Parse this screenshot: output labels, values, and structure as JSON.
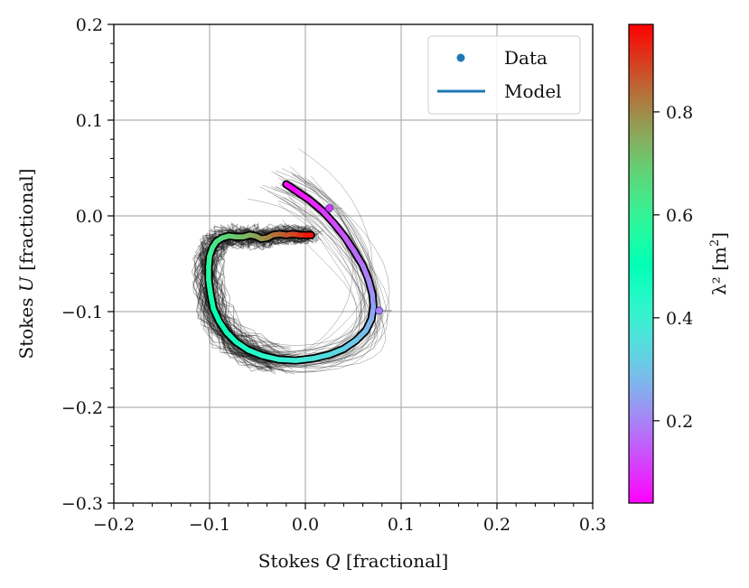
{
  "chart_data": {
    "type": "line",
    "title": "",
    "xlabel": "Stokes Q [fractional]",
    "xlabel_prefix": "Stokes ",
    "xlabel_symbol": "Q",
    "xlabel_suffix": " [fractional]",
    "ylabel": "Stokes U [fractional]",
    "ylabel_prefix": "Stokes ",
    "ylabel_symbol": "U",
    "ylabel_suffix": " [fractional]",
    "xlim": [
      -0.2,
      0.3
    ],
    "ylim": [
      -0.3,
      0.2
    ],
    "xticks": [
      -0.2,
      -0.1,
      0.0,
      0.1,
      0.2,
      0.3
    ],
    "xtick_labels": [
      "−0.2",
      "−0.1",
      "0.0",
      "0.1",
      "0.2",
      "0.3"
    ],
    "yticks": [
      -0.3,
      -0.2,
      -0.1,
      0.0,
      0.1,
      0.2
    ],
    "ytick_labels": [
      "−0.3",
      "−0.2",
      "−0.1",
      "0.0",
      "0.1",
      "0.2"
    ],
    "grid": true,
    "legend": {
      "placement": "top-right",
      "entries": [
        {
          "label": "Data",
          "marker": "point",
          "color": "#1f77b4"
        },
        {
          "label": "Model",
          "marker": "line",
          "color": "#1f77b4"
        }
      ]
    },
    "model_curve": {
      "name": "Model",
      "q": [
        -0.02,
        -0.008,
        0.005,
        0.018,
        0.03,
        0.041,
        0.051,
        0.06,
        0.066,
        0.07,
        0.071,
        0.069,
        0.063,
        0.053,
        0.04,
        0.025,
        0.008,
        -0.01,
        -0.028,
        -0.045,
        -0.06,
        -0.072,
        -0.082,
        -0.09,
        -0.096,
        -0.099,
        -0.101,
        -0.101,
        -0.1,
        -0.097,
        -0.093,
        -0.087,
        -0.08,
        -0.072,
        -0.065,
        -0.058,
        -0.052,
        -0.046,
        -0.04,
        -0.034,
        -0.027,
        -0.02,
        -0.013,
        -0.006,
        0.0,
        0.006
      ],
      "u": [
        0.033,
        0.025,
        0.016,
        0.005,
        -0.008,
        -0.022,
        -0.037,
        -0.052,
        -0.067,
        -0.082,
        -0.095,
        -0.108,
        -0.12,
        -0.13,
        -0.139,
        -0.145,
        -0.149,
        -0.151,
        -0.15,
        -0.146,
        -0.14,
        -0.132,
        -0.122,
        -0.11,
        -0.097,
        -0.082,
        -0.067,
        -0.053,
        -0.042,
        -0.033,
        -0.027,
        -0.023,
        -0.021,
        -0.022,
        -0.022,
        -0.02,
        -0.021,
        -0.024,
        -0.023,
        -0.02,
        -0.019,
        -0.02,
        -0.019,
        -0.02,
        -0.02,
        -0.02
      ],
      "lambda2": [
        0.04,
        0.06,
        0.08,
        0.1,
        0.12,
        0.14,
        0.16,
        0.18,
        0.2,
        0.22,
        0.24,
        0.26,
        0.28,
        0.3,
        0.32,
        0.34,
        0.36,
        0.38,
        0.4,
        0.42,
        0.44,
        0.46,
        0.48,
        0.5,
        0.52,
        0.54,
        0.56,
        0.58,
        0.6,
        0.62,
        0.64,
        0.66,
        0.68,
        0.7,
        0.72,
        0.74,
        0.76,
        0.78,
        0.8,
        0.82,
        0.84,
        0.86,
        0.88,
        0.9,
        0.93,
        0.96
      ]
    },
    "data_points": {
      "name": "Data",
      "q": [
        0.025,
        0.077
      ],
      "u": [
        0.008,
        -0.099
      ],
      "lambda2": [
        0.1,
        0.19
      ]
    },
    "posterior_sample_count": 40,
    "colorbar": {
      "label": "λ² [m²]",
      "label_main": "λ² [m",
      "label_sup": "2",
      "label_end": "]",
      "range": [
        0.04,
        0.97
      ],
      "ticks": [
        0.2,
        0.4,
        0.6,
        0.8
      ],
      "tick_labels": [
        "0.2",
        "0.4",
        "0.6",
        "0.8"
      ],
      "colormap": "rainbow"
    }
  }
}
